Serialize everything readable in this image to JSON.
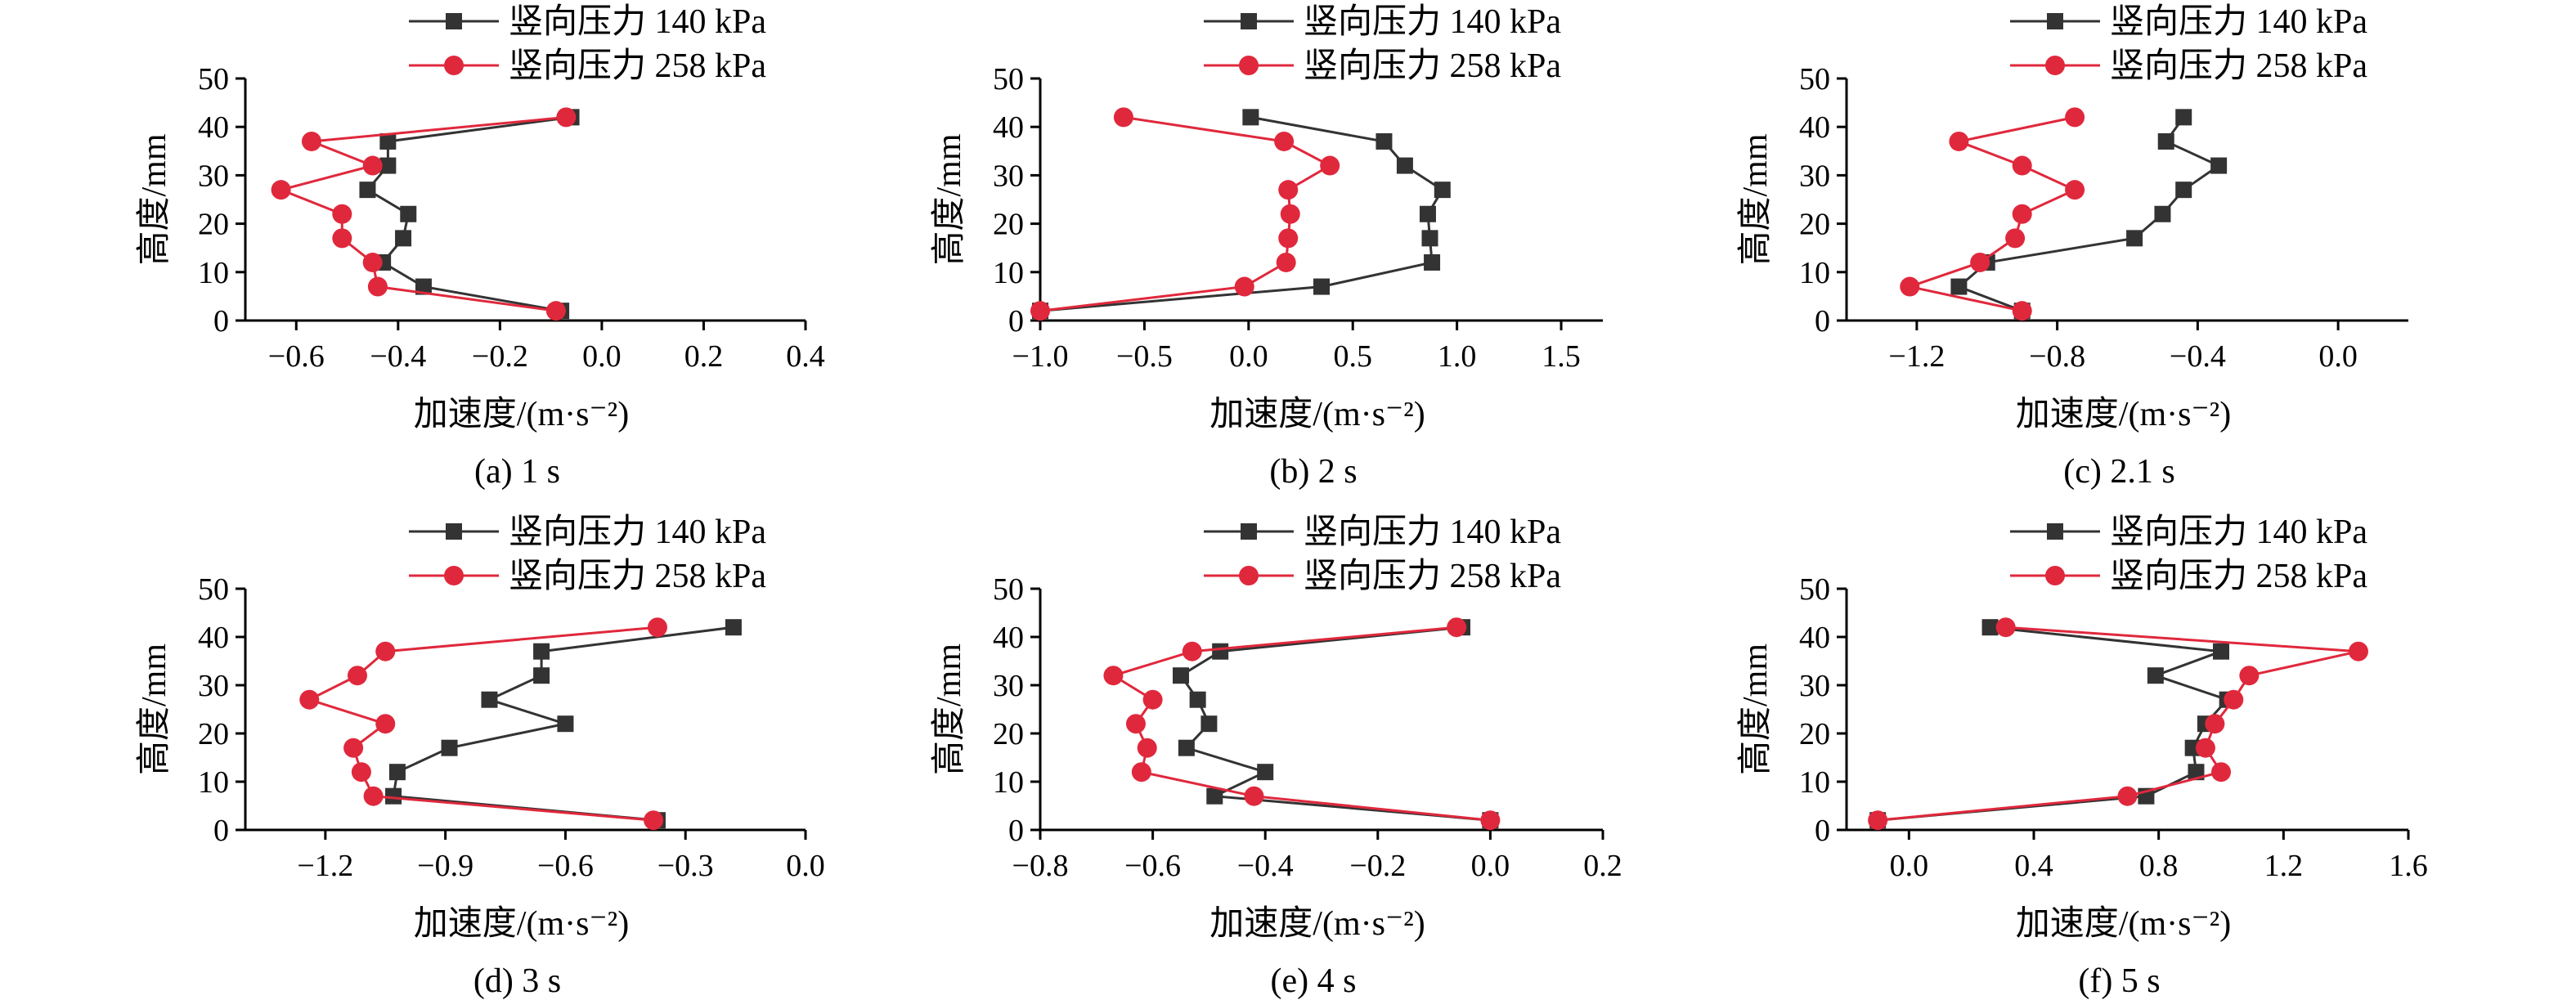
{
  "chart_data": [
    {
      "type": "line",
      "caption": "(a) 1 s",
      "xlabel": "加速度/(m·s⁻²)",
      "ylabel": "高度/mm",
      "xlim": [
        -0.7,
        0.4
      ],
      "ylim": [
        0,
        50
      ],
      "xticks": [
        -0.6,
        -0.4,
        -0.2,
        0.0,
        0.2,
        0.4
      ],
      "xtick_labels": [
        "−0.6",
        "−0.4",
        "−0.2",
        "0.0",
        "0.2",
        "0.4"
      ],
      "yticks": [
        0,
        10,
        20,
        30,
        40,
        50
      ],
      "ytick_labels": [
        "0",
        "10",
        "20",
        "30",
        "40",
        "50"
      ],
      "legend": "top",
      "series": [
        {
          "name": "竖向压力 140 kPa",
          "color": "#333333",
          "marker": "square",
          "points": [
            [
              -0.06,
              42
            ],
            [
              -0.42,
              37
            ],
            [
              -0.42,
              32
            ],
            [
              -0.46,
              27
            ],
            [
              -0.38,
              22
            ],
            [
              -0.39,
              17
            ],
            [
              -0.43,
              12
            ],
            [
              -0.35,
              7
            ],
            [
              -0.08,
              2
            ]
          ]
        },
        {
          "name": "竖向压力 258 kPa",
          "color": "#e0283c",
          "marker": "circle",
          "points": [
            [
              -0.07,
              42
            ],
            [
              -0.57,
              37
            ],
            [
              -0.45,
              32
            ],
            [
              -0.63,
              27
            ],
            [
              -0.51,
              22
            ],
            [
              -0.51,
              17
            ],
            [
              -0.45,
              12
            ],
            [
              -0.44,
              7
            ],
            [
              -0.09,
              2
            ]
          ]
        }
      ]
    },
    {
      "type": "line",
      "caption": "(b) 2 s",
      "xlabel": "加速度/(m·s⁻²)",
      "ylabel": "高度/mm",
      "xlim": [
        -1.0,
        1.7
      ],
      "ylim": [
        0,
        50
      ],
      "xticks": [
        -1.0,
        -0.5,
        0.0,
        0.5,
        1.0,
        1.5
      ],
      "xtick_labels": [
        "−1.0",
        "−0.5",
        "0.0",
        "0.5",
        "1.0",
        "1.5"
      ],
      "yticks": [
        0,
        10,
        20,
        30,
        40,
        50
      ],
      "ytick_labels": [
        "0",
        "10",
        "20",
        "30",
        "40",
        "50"
      ],
      "legend": "top",
      "series": [
        {
          "name": "竖向压力 140 kPa",
          "color": "#333333",
          "marker": "square",
          "points": [
            [
              0.01,
              42
            ],
            [
              0.65,
              37
            ],
            [
              0.75,
              32
            ],
            [
              0.93,
              27
            ],
            [
              0.86,
              22
            ],
            [
              0.87,
              17
            ],
            [
              0.88,
              12
            ],
            [
              0.35,
              7
            ],
            [
              -1.0,
              2
            ]
          ]
        },
        {
          "name": "竖向压力 258 kPa",
          "color": "#e0283c",
          "marker": "circle",
          "points": [
            [
              -0.6,
              42
            ],
            [
              0.17,
              37
            ],
            [
              0.39,
              32
            ],
            [
              0.19,
              27
            ],
            [
              0.2,
              22
            ],
            [
              0.19,
              17
            ],
            [
              0.18,
              12
            ],
            [
              -0.02,
              7
            ],
            [
              -1.0,
              2
            ]
          ]
        }
      ]
    },
    {
      "type": "line",
      "caption": "(c) 2.1 s",
      "xlabel": "加速度/(m·s⁻²)",
      "ylabel": "高度/mm",
      "xlim": [
        -1.4,
        0.2
      ],
      "ylim": [
        0,
        50
      ],
      "xticks": [
        -1.2,
        -0.8,
        -0.4,
        0.0
      ],
      "xtick_labels": [
        "−1.2",
        "−0.8",
        "−0.4",
        "0.0"
      ],
      "yticks": [
        0,
        10,
        20,
        30,
        40,
        50
      ],
      "ytick_labels": [
        "0",
        "10",
        "20",
        "30",
        "40",
        "50"
      ],
      "legend": "top",
      "series": [
        {
          "name": "竖向压力 140 kPa",
          "color": "#333333",
          "marker": "square",
          "points": [
            [
              -0.44,
              42
            ],
            [
              -0.49,
              37
            ],
            [
              -0.34,
              32
            ],
            [
              -0.44,
              27
            ],
            [
              -0.5,
              22
            ],
            [
              -0.58,
              17
            ],
            [
              -1.0,
              12
            ],
            [
              -1.08,
              7
            ],
            [
              -0.9,
              2
            ]
          ]
        },
        {
          "name": "竖向压力 258 kPa",
          "color": "#e0283c",
          "marker": "circle",
          "points": [
            [
              -0.75,
              42
            ],
            [
              -1.08,
              37
            ],
            [
              -0.9,
              32
            ],
            [
              -0.75,
              27
            ],
            [
              -0.9,
              22
            ],
            [
              -0.92,
              17
            ],
            [
              -1.02,
              12
            ],
            [
              -1.22,
              7
            ],
            [
              -0.9,
              2
            ]
          ]
        }
      ]
    },
    {
      "type": "line",
      "caption": "(d) 3 s",
      "xlabel": "加速度/(m·s⁻²)",
      "ylabel": "高度/mm",
      "xlim": [
        -1.4,
        0.0
      ],
      "ylim": [
        0,
        50
      ],
      "xticks": [
        -1.2,
        -0.9,
        -0.6,
        -0.3,
        0.0
      ],
      "xtick_labels": [
        "−1.2",
        "−0.9",
        "−0.6",
        "−0.3",
        "0.0"
      ],
      "yticks": [
        0,
        10,
        20,
        30,
        40,
        50
      ],
      "ytick_labels": [
        "0",
        "10",
        "20",
        "30",
        "40",
        "50"
      ],
      "legend": "top",
      "series": [
        {
          "name": "竖向压力 140 kPa",
          "color": "#333333",
          "marker": "square",
          "points": [
            [
              -0.18,
              42
            ],
            [
              -0.66,
              37
            ],
            [
              -0.66,
              32
            ],
            [
              -0.79,
              27
            ],
            [
              -0.6,
              22
            ],
            [
              -0.89,
              17
            ],
            [
              -1.02,
              12
            ],
            [
              -1.03,
              7
            ],
            [
              -0.37,
              2
            ]
          ]
        },
        {
          "name": "竖向压力 258 kPa",
          "color": "#e0283c",
          "marker": "circle",
          "points": [
            [
              -0.37,
              42
            ],
            [
              -1.05,
              37
            ],
            [
              -1.12,
              32
            ],
            [
              -1.24,
              27
            ],
            [
              -1.05,
              22
            ],
            [
              -1.13,
              17
            ],
            [
              -1.11,
              12
            ],
            [
              -1.08,
              7
            ],
            [
              -0.38,
              2
            ]
          ]
        }
      ]
    },
    {
      "type": "line",
      "caption": "(e) 4 s",
      "xlabel": "加速度/(m·s⁻²)",
      "ylabel": "高度/mm",
      "xlim": [
        -0.8,
        0.2
      ],
      "ylim": [
        0,
        50
      ],
      "xticks": [
        -0.8,
        -0.6,
        -0.4,
        -0.2,
        0.0,
        0.2
      ],
      "xtick_labels": [
        "−0.8",
        "−0.6",
        "−0.4",
        "−0.2",
        "0.0",
        "0.2"
      ],
      "yticks": [
        0,
        10,
        20,
        30,
        40,
        50
      ],
      "ytick_labels": [
        "0",
        "10",
        "20",
        "30",
        "40",
        "50"
      ],
      "legend": "top",
      "series": [
        {
          "name": "竖向压力 140 kPa",
          "color": "#333333",
          "marker": "square",
          "points": [
            [
              -0.05,
              42
            ],
            [
              -0.48,
              37
            ],
            [
              -0.55,
              32
            ],
            [
              -0.52,
              27
            ],
            [
              -0.5,
              22
            ],
            [
              -0.54,
              17
            ],
            [
              -0.4,
              12
            ],
            [
              -0.49,
              7
            ],
            [
              0.0,
              2
            ]
          ]
        },
        {
          "name": "竖向压力 258 kPa",
          "color": "#e0283c",
          "marker": "circle",
          "points": [
            [
              -0.06,
              42
            ],
            [
              -0.53,
              37
            ],
            [
              -0.67,
              32
            ],
            [
              -0.6,
              27
            ],
            [
              -0.63,
              22
            ],
            [
              -0.61,
              17
            ],
            [
              -0.62,
              12
            ],
            [
              -0.42,
              7
            ],
            [
              0.0,
              2
            ]
          ]
        }
      ]
    },
    {
      "type": "line",
      "caption": "(f) 5 s",
      "xlabel": "加速度/(m·s⁻²)",
      "ylabel": "高度/mm",
      "xlim": [
        -0.2,
        1.6
      ],
      "ylim": [
        0,
        50
      ],
      "xticks": [
        0.0,
        0.4,
        0.8,
        1.2,
        1.6
      ],
      "xtick_labels": [
        "0.0",
        "0.4",
        "0.8",
        "1.2",
        "1.6"
      ],
      "yticks": [
        0,
        10,
        20,
        30,
        40,
        50
      ],
      "ytick_labels": [
        "0",
        "10",
        "20",
        "30",
        "40",
        "50"
      ],
      "legend": "top",
      "series": [
        {
          "name": "竖向压力 140 kPa",
          "color": "#333333",
          "marker": "square",
          "points": [
            [
              0.26,
              42
            ],
            [
              1.0,
              37
            ],
            [
              0.79,
              32
            ],
            [
              1.02,
              27
            ],
            [
              0.95,
              22
            ],
            [
              0.91,
              17
            ],
            [
              0.92,
              12
            ],
            [
              0.76,
              7
            ],
            [
              -0.1,
              2
            ]
          ]
        },
        {
          "name": "竖向压力 258 kPa",
          "color": "#e0283c",
          "marker": "circle",
          "points": [
            [
              0.31,
              42
            ],
            [
              1.44,
              37
            ],
            [
              1.09,
              32
            ],
            [
              1.04,
              27
            ],
            [
              0.98,
              22
            ],
            [
              0.95,
              17
            ],
            [
              1.0,
              12
            ],
            [
              0.7,
              7
            ],
            [
              -0.1,
              2
            ]
          ]
        }
      ]
    }
  ]
}
